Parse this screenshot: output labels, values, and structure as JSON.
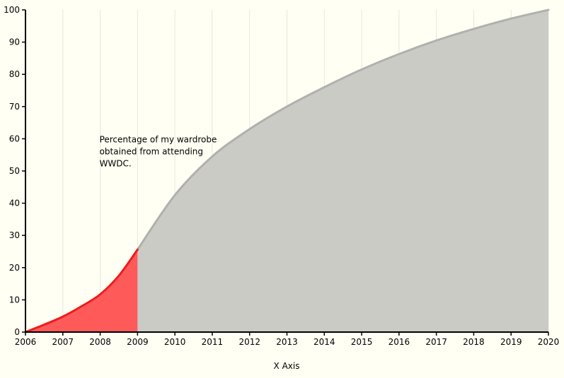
{
  "chart_data": {
    "type": "area",
    "title": "",
    "xlabel": "X Axis",
    "ylabel": "",
    "xlim": [
      2006,
      2020
    ],
    "ylim": [
      0,
      100
    ],
    "x_ticks": [
      "2006",
      "2007",
      "2008",
      "2009",
      "2010",
      "2011",
      "2012",
      "2013",
      "2014",
      "2015",
      "2016",
      "2017",
      "2018",
      "2019",
      "2020"
    ],
    "y_ticks": [
      "0",
      "10",
      "20",
      "30",
      "40",
      "50",
      "60",
      "70",
      "80",
      "90",
      "100"
    ],
    "grid": "vertical",
    "annotation": {
      "lines": [
        "Percentage of my wardrobe",
        "obtained from attending",
        "WWDC."
      ],
      "anchor_x": 2008,
      "anchor_y": 60
    },
    "series": [
      {
        "color": "#ee1c1c",
        "fill": "#ff5a5a",
        "x": [
          2006.0,
          2006.5,
          2007.0,
          2007.5,
          2008.0,
          2008.5,
          2009.0
        ],
        "y": [
          0.0,
          2.3,
          4.8,
          8.0,
          11.7,
          17.5,
          25.6
        ]
      },
      {
        "color": "#b0b0ad",
        "fill": "#cbcbc6",
        "x": [
          2009,
          2010,
          2011,
          2012,
          2013,
          2014,
          2015,
          2016,
          2017,
          2018,
          2019,
          2020
        ],
        "y": [
          25.6,
          42.5,
          54.5,
          63.0,
          70.0,
          76.0,
          81.5,
          86.3,
          90.5,
          94.1,
          97.3,
          100.0
        ]
      }
    ]
  }
}
